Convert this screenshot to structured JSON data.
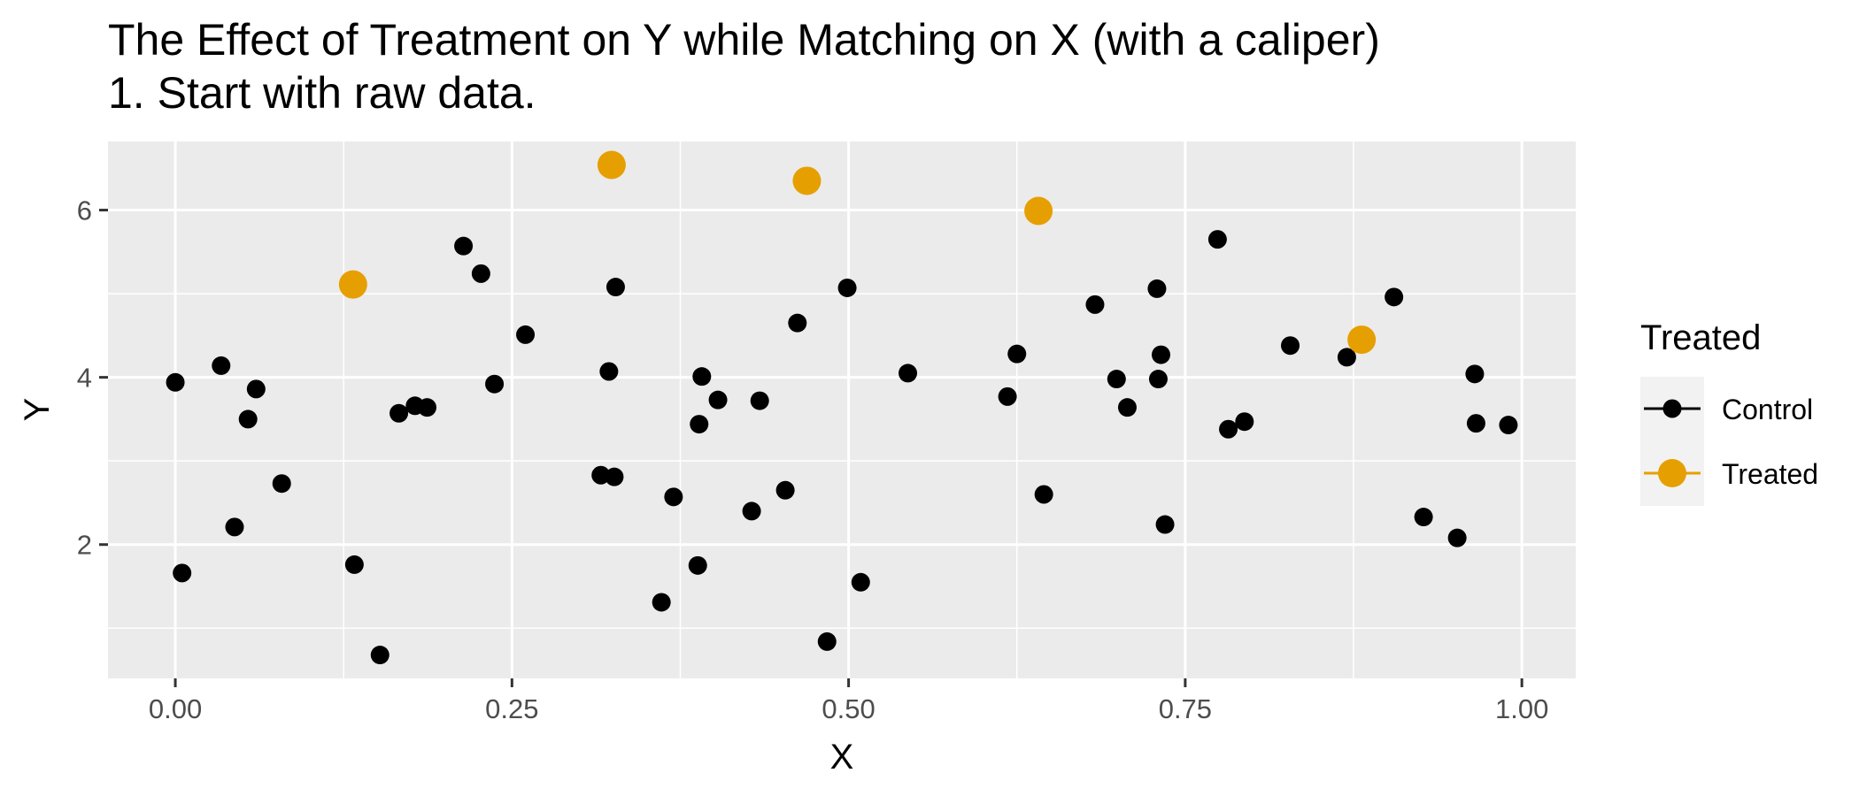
{
  "chart_data": {
    "type": "scatter",
    "title": "The Effect of Treatment on Y while Matching on X (with a caliper)",
    "subtitle": "1. Start with raw data.",
    "xlabel": "X",
    "ylabel": "Y",
    "xlim": [
      -0.05,
      1.04
    ],
    "ylim": [
      0.4,
      6.82
    ],
    "x_ticks": [
      0,
      0.25,
      0.5,
      0.75,
      1.0
    ],
    "x_tick_labels": [
      "0.00",
      "0.25",
      "0.50",
      "0.75",
      "1.00"
    ],
    "y_ticks": [
      2,
      4,
      6
    ],
    "y_tick_labels": [
      "2",
      "4",
      "6"
    ],
    "grid": true,
    "legend": {
      "title": "Treated",
      "position": "right",
      "entries": [
        {
          "label": "Control",
          "color": "#000000"
        },
        {
          "label": "Treated",
          "color": "#E69F00"
        }
      ]
    },
    "series": [
      {
        "name": "Control",
        "color": "#000000",
        "points": [
          [
            0.0,
            3.94
          ],
          [
            0.005,
            1.66
          ],
          [
            0.034,
            4.14
          ],
          [
            0.044,
            2.21
          ],
          [
            0.054,
            3.5
          ],
          [
            0.06,
            3.86
          ],
          [
            0.079,
            2.73
          ],
          [
            0.133,
            1.76
          ],
          [
            0.152,
            0.68
          ],
          [
            0.166,
            3.57
          ],
          [
            0.178,
            3.66
          ],
          [
            0.187,
            3.64
          ],
          [
            0.214,
            5.57
          ],
          [
            0.227,
            5.24
          ],
          [
            0.237,
            3.92
          ],
          [
            0.26,
            4.51
          ],
          [
            0.316,
            2.83
          ],
          [
            0.322,
            4.07
          ],
          [
            0.326,
            2.81
          ],
          [
            0.327,
            5.08
          ],
          [
            0.361,
            1.31
          ],
          [
            0.37,
            2.57
          ],
          [
            0.388,
            1.75
          ],
          [
            0.389,
            3.44
          ],
          [
            0.391,
            4.01
          ],
          [
            0.403,
            3.73
          ],
          [
            0.428,
            2.4
          ],
          [
            0.434,
            3.72
          ],
          [
            0.453,
            2.65
          ],
          [
            0.462,
            4.65
          ],
          [
            0.484,
            0.84
          ],
          [
            0.499,
            5.07
          ],
          [
            0.509,
            1.55
          ],
          [
            0.544,
            4.05
          ],
          [
            0.618,
            3.77
          ],
          [
            0.625,
            4.28
          ],
          [
            0.645,
            2.6
          ],
          [
            0.683,
            4.87
          ],
          [
            0.699,
            3.98
          ],
          [
            0.707,
            3.64
          ],
          [
            0.729,
            5.06
          ],
          [
            0.73,
            3.98
          ],
          [
            0.732,
            4.27
          ],
          [
            0.735,
            2.24
          ],
          [
            0.774,
            5.65
          ],
          [
            0.782,
            3.38
          ],
          [
            0.794,
            3.47
          ],
          [
            0.828,
            4.38
          ],
          [
            0.87,
            4.24
          ],
          [
            0.905,
            4.96
          ],
          [
            0.927,
            2.33
          ],
          [
            0.952,
            2.08
          ],
          [
            0.965,
            4.04
          ],
          [
            0.966,
            3.45
          ],
          [
            0.99,
            3.43
          ]
        ]
      },
      {
        "name": "Treated",
        "color": "#E69F00",
        "points": [
          [
            0.132,
            5.11
          ],
          [
            0.324,
            6.54
          ],
          [
            0.469,
            6.35
          ],
          [
            0.641,
            5.99
          ],
          [
            0.881,
            4.45
          ]
        ]
      }
    ]
  }
}
